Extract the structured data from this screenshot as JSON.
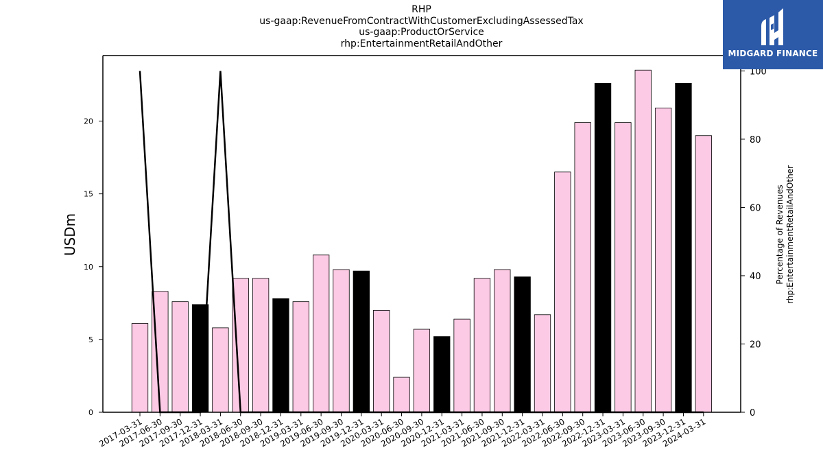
{
  "title": {
    "line1": "RHP",
    "line2": "us-gaap:RevenueFromContractWithCustomerExcludingAssessedTax",
    "line3": "us-gaap:ProductOrService",
    "line4": "rhp:EntertainmentRetailAndOther"
  },
  "logo": {
    "text": "MIDGARD FINANCE",
    "color": "#2c5aa8"
  },
  "colors": {
    "pink": "#fccae4",
    "black": "#000000",
    "line": "#000000"
  },
  "chart_data": {
    "type": "bar",
    "ylabel": "USDm",
    "y2label_line1": "Percentage of Revenues",
    "y2label_line2": "rhp:EntertainmentRetailAndOther",
    "ylim": [
      0,
      24.5
    ],
    "y2lim": [
      0,
      104.5
    ],
    "yticks": [
      0,
      5,
      10,
      15,
      20
    ],
    "y2ticks": [
      0,
      20,
      40,
      60,
      80,
      100
    ],
    "categories": [
      "2017-03-31",
      "2017-06-30",
      "2017-09-30",
      "2017-12-31",
      "2018-03-31",
      "2018-06-30",
      "2018-09-30",
      "2018-12-31",
      "2019-03-31",
      "2019-06-30",
      "2019-09-30",
      "2019-12-31",
      "2020-03-31",
      "2020-06-30",
      "2020-09-30",
      "2020-12-31",
      "2021-03-31",
      "2021-06-30",
      "2021-09-30",
      "2021-12-31",
      "2022-03-31",
      "2022-06-30",
      "2022-09-30",
      "2022-12-31",
      "2023-03-31",
      "2023-06-30",
      "2023-09-30",
      "2023-12-31",
      "2024-03-31"
    ],
    "series": [
      {
        "values": [
          6.1,
          8.3,
          7.6,
          7.4,
          5.8,
          9.2,
          9.2,
          7.8,
          7.6,
          10.8,
          9.8,
          9.7,
          7.0,
          2.4,
          5.7,
          5.2,
          6.4,
          9.2,
          9.8,
          9.3,
          6.7,
          16.5,
          19.9,
          22.6,
          19.9,
          23.5,
          20.9,
          22.6,
          19.0
        ],
        "bar_colors": [
          "pink",
          "pink",
          "pink",
          "black",
          "pink",
          "pink",
          "pink",
          "black",
          "pink",
          "pink",
          "pink",
          "black",
          "pink",
          "pink",
          "pink",
          "black",
          "pink",
          "pink",
          "pink",
          "black",
          "pink",
          "pink",
          "pink",
          "black",
          "pink",
          "pink",
          "pink",
          "black",
          "pink"
        ]
      },
      {
        "axis": "right",
        "type": "line",
        "values": [
          100,
          0,
          0,
          0,
          100,
          0,
          0,
          0,
          0,
          0,
          0,
          0,
          0,
          0,
          0,
          0,
          0,
          0,
          0,
          0,
          0,
          0,
          0,
          0,
          0,
          0,
          0,
          0,
          0
        ]
      }
    ]
  }
}
